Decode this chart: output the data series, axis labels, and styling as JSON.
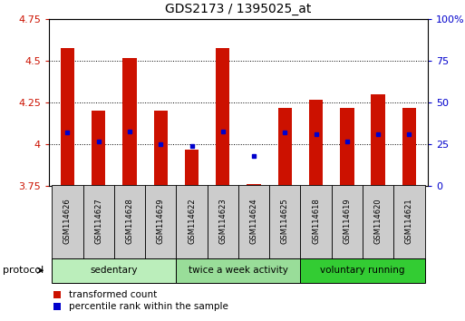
{
  "title": "GDS2173 / 1395025_at",
  "samples": [
    "GSM114626",
    "GSM114627",
    "GSM114628",
    "GSM114629",
    "GSM114622",
    "GSM114623",
    "GSM114624",
    "GSM114625",
    "GSM114618",
    "GSM114619",
    "GSM114620",
    "GSM114621"
  ],
  "bar_tops": [
    4.58,
    4.2,
    4.52,
    4.2,
    3.97,
    4.58,
    3.76,
    4.22,
    4.27,
    4.22,
    4.3,
    4.22
  ],
  "bar_bottom": 3.75,
  "percentile_values": [
    4.07,
    4.02,
    4.08,
    4.0,
    3.99,
    4.08,
    3.93,
    4.07,
    4.06,
    4.02,
    4.06,
    4.06
  ],
  "groups": [
    {
      "label": "sedentary",
      "start": 0,
      "end": 4,
      "color": "#bbeebb"
    },
    {
      "label": "twice a week activity",
      "start": 4,
      "end": 8,
      "color": "#99dd99"
    },
    {
      "label": "voluntary running",
      "start": 8,
      "end": 12,
      "color": "#33cc33"
    }
  ],
  "ylim": [
    3.75,
    4.75
  ],
  "y_ticks": [
    3.75,
    4.0,
    4.25,
    4.5,
    4.75
  ],
  "y_tick_labels": [
    "3.75",
    "4",
    "4.25",
    "4.5",
    "4.75"
  ],
  "y2_ticks": [
    0,
    25,
    50,
    75,
    100
  ],
  "y2_tick_labels": [
    "0",
    "25",
    "50",
    "75",
    "100%"
  ],
  "bar_color": "#cc1100",
  "percentile_color": "#0000cc",
  "left_tick_color": "#cc1100",
  "right_tick_color": "#0000cc",
  "bar_width": 0.45,
  "sample_box_color": "#cccccc",
  "legend_red_label": "transformed count",
  "legend_blue_label": "percentile rank within the sample",
  "protocol_label": "protocol"
}
